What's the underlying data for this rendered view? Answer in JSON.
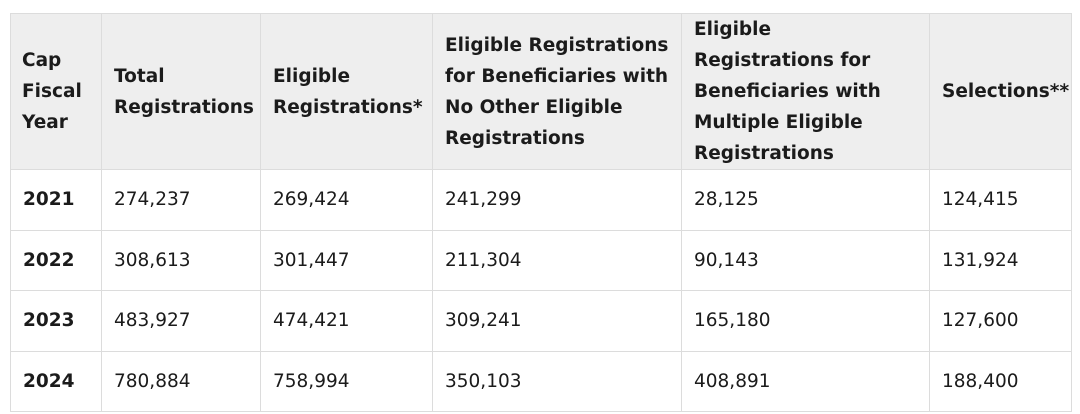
{
  "table": {
    "headers": [
      "Cap Fiscal Year",
      "Total Registrations",
      "Eligible Registrations*",
      "Eligible Registrations for Beneficiaries with No Other Eligible Registrations",
      "Eligible Registrations for Beneficiaries with Multiple Eligible Registrations",
      "Selections**"
    ],
    "rows": [
      [
        "2021",
        "274,237",
        "269,424",
        "241,299",
        "28,125",
        "124,415"
      ],
      [
        "2022",
        "308,613",
        "301,447",
        "211,304",
        "90,143",
        "131,924"
      ],
      [
        "2023",
        "483,927",
        "474,421",
        "309,241",
        "165,180",
        "127,600"
      ],
      [
        "2024",
        "780,884",
        "758,994",
        "350,103",
        "408,891",
        "188,400"
      ]
    ]
  },
  "colors": {
    "header_bg": "#eeeeee",
    "border": "#dcdcdc",
    "text": "#1b1b1b"
  }
}
